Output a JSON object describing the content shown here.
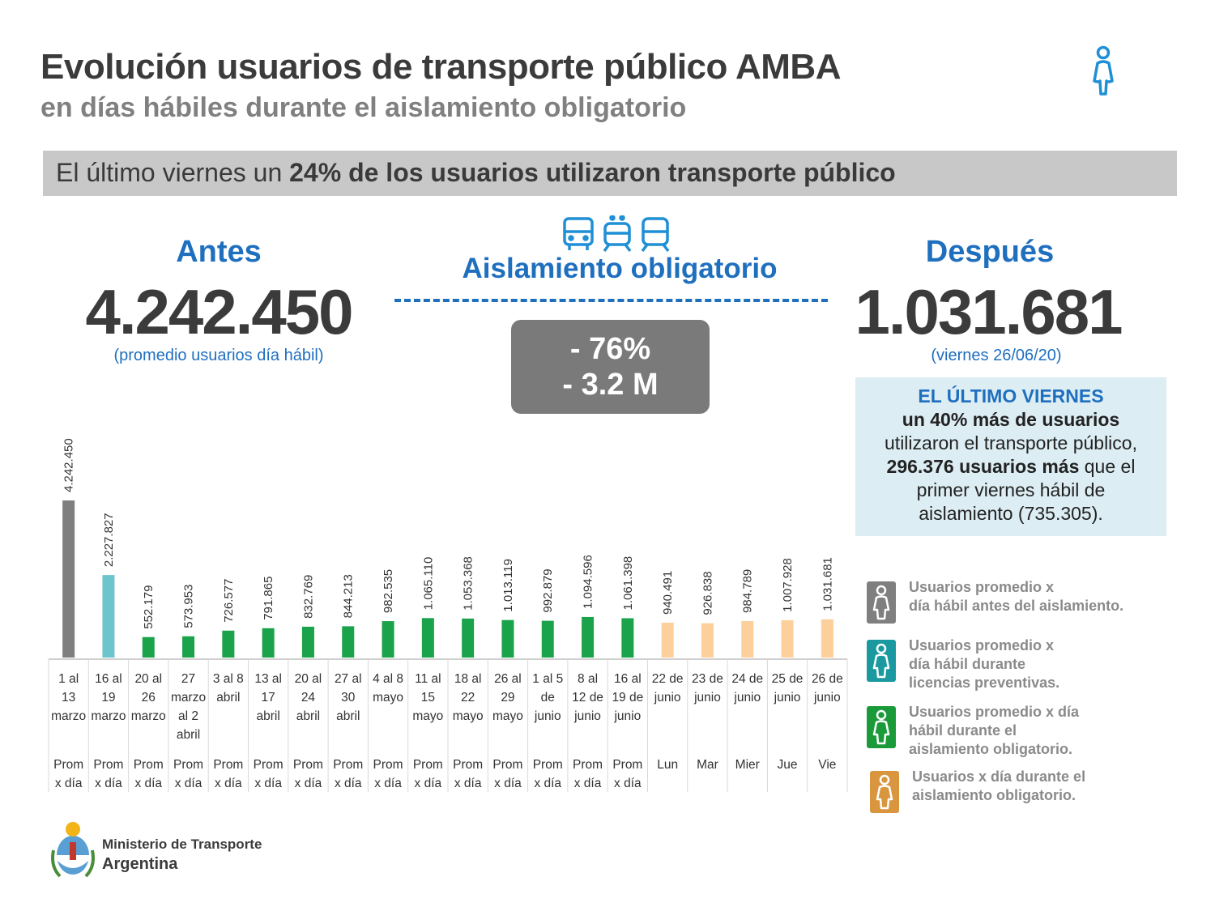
{
  "header": {
    "title": "Evolución usuarios de transporte público AMBA",
    "subtitle": "en días hábiles durante el aislamiento obligatorio"
  },
  "banner": {
    "prefix": "El último viernes un ",
    "bold": "24% de los usuarios utilizaron transporte público"
  },
  "summary": {
    "before_label": "Antes",
    "before_value": "4.242.450",
    "before_note": "(promedio usuarios día hábil)",
    "isolation_label": "Aislamiento obligatorio",
    "drop_percent": "- 76%",
    "drop_millions": "- 3.2 M",
    "after_label": "Después",
    "after_value": "1.031.681",
    "after_note": "(viernes 26/06/20)"
  },
  "info_box": {
    "line1": "EL ÚLTIMO VIERNES",
    "line2": "un 40% más de usuarios",
    "line3": "utilizaron el transporte público,",
    "line4_bold": "296.376 usuarios más",
    "line4_rest": " que el",
    "line5": "primer viernes hábil de",
    "line6": "aislamiento (735.305)."
  },
  "legend": [
    {
      "text_1": "Usuarios promedio x",
      "text_2": "día hábil antes del aislamiento.",
      "text_3": "",
      "color": "#7f7f7f"
    },
    {
      "text_1": "Usuarios promedio x",
      "text_2": "día hábil durante",
      "text_3": "licencias preventivas.",
      "color": "#1a9aa0"
    },
    {
      "text_1": "Usuarios promedio x día",
      "text_2": "hábil durante el",
      "text_3": "aislamiento obligatorio.",
      "color": "#1b9a3a"
    },
    {
      "text_1": "Usuarios x día durante el",
      "text_2": "aislamiento obligatorio.",
      "text_3": "",
      "color": "#d9963f"
    }
  ],
  "footer": {
    "ministry": "Ministerio de Transporte",
    "country": "Argentina"
  },
  "colors": {
    "accent_blue": "#1f6fbf",
    "pre_isolation": "#7f7f7f",
    "preventive": "#6cc4cc",
    "isolation": "#1aa34a",
    "daily": "#fdcf9b"
  },
  "chart_data": {
    "type": "bar",
    "grid": false,
    "categories": [
      [
        "1 al",
        "13",
        "marzo"
      ],
      [
        "16 al",
        "19",
        "marzo"
      ],
      [
        "20 al",
        "26",
        "marzo"
      ],
      [
        "27",
        "marzo",
        "al 2",
        "abril"
      ],
      [
        "3 al 8",
        "abril"
      ],
      [
        "13 al",
        "17",
        "abril"
      ],
      [
        "20 al",
        "24",
        "abril"
      ],
      [
        "27 al",
        "30",
        "abril"
      ],
      [
        "4 al 8",
        "mayo"
      ],
      [
        "11 al",
        "15",
        "mayo"
      ],
      [
        "18 al",
        "22",
        "mayo"
      ],
      [
        "26 al",
        "29",
        "mayo"
      ],
      [
        "1 al 5",
        "de",
        "junio"
      ],
      [
        "8 al",
        "12 de",
        "junio"
      ],
      [
        "16 al",
        "19 de",
        "junio"
      ],
      [
        "22 de",
        "junio"
      ],
      [
        "23 de",
        "junio"
      ],
      [
        "24 de",
        "junio"
      ],
      [
        "25 de",
        "junio"
      ],
      [
        "26 de",
        "junio"
      ]
    ],
    "sublabels": [
      [
        "Prom",
        "x día"
      ],
      [
        "Prom",
        "x día"
      ],
      [
        "Prom",
        "x día"
      ],
      [
        "Prom",
        "x día"
      ],
      [
        "Prom",
        "x día"
      ],
      [
        "Prom",
        "x día"
      ],
      [
        "Prom",
        "x día"
      ],
      [
        "Prom",
        "x día"
      ],
      [
        "Prom",
        "x día"
      ],
      [
        "Prom",
        "x día"
      ],
      [
        "Prom",
        "x día"
      ],
      [
        "Prom",
        "x día"
      ],
      [
        "Prom",
        "x día"
      ],
      [
        "Prom",
        "x día"
      ],
      [
        "Prom",
        "x día"
      ],
      [
        "Lun"
      ],
      [
        "Mar"
      ],
      [
        "Mier"
      ],
      [
        "Jue"
      ],
      [
        "Vie"
      ]
    ],
    "values": [
      4242450,
      2227827,
      552179,
      573953,
      726577,
      791865,
      832769,
      844213,
      982535,
      1065110,
      1053368,
      1013119,
      992879,
      1094596,
      1061398,
      940491,
      926838,
      984789,
      1007928,
      1031681
    ],
    "value_labels": [
      "4.242.450",
      "2.227.827",
      "552.179",
      "573.953",
      "726.577",
      "791.865",
      "832.769",
      "844.213",
      "982.535",
      "1.065.110",
      "1.053.368",
      "1.013.119",
      "992.879",
      "1.094.596",
      "1.061.398",
      "940.491",
      "926.838",
      "984.789",
      "1.007.928",
      "1.031.681"
    ],
    "bar_groups": [
      "pre_isolation",
      "preventive",
      "isolation",
      "isolation",
      "isolation",
      "isolation",
      "isolation",
      "isolation",
      "isolation",
      "isolation",
      "isolation",
      "isolation",
      "isolation",
      "isolation",
      "isolation",
      "daily",
      "daily",
      "daily",
      "daily",
      "daily"
    ],
    "ylim": [
      0,
      4242450
    ]
  }
}
